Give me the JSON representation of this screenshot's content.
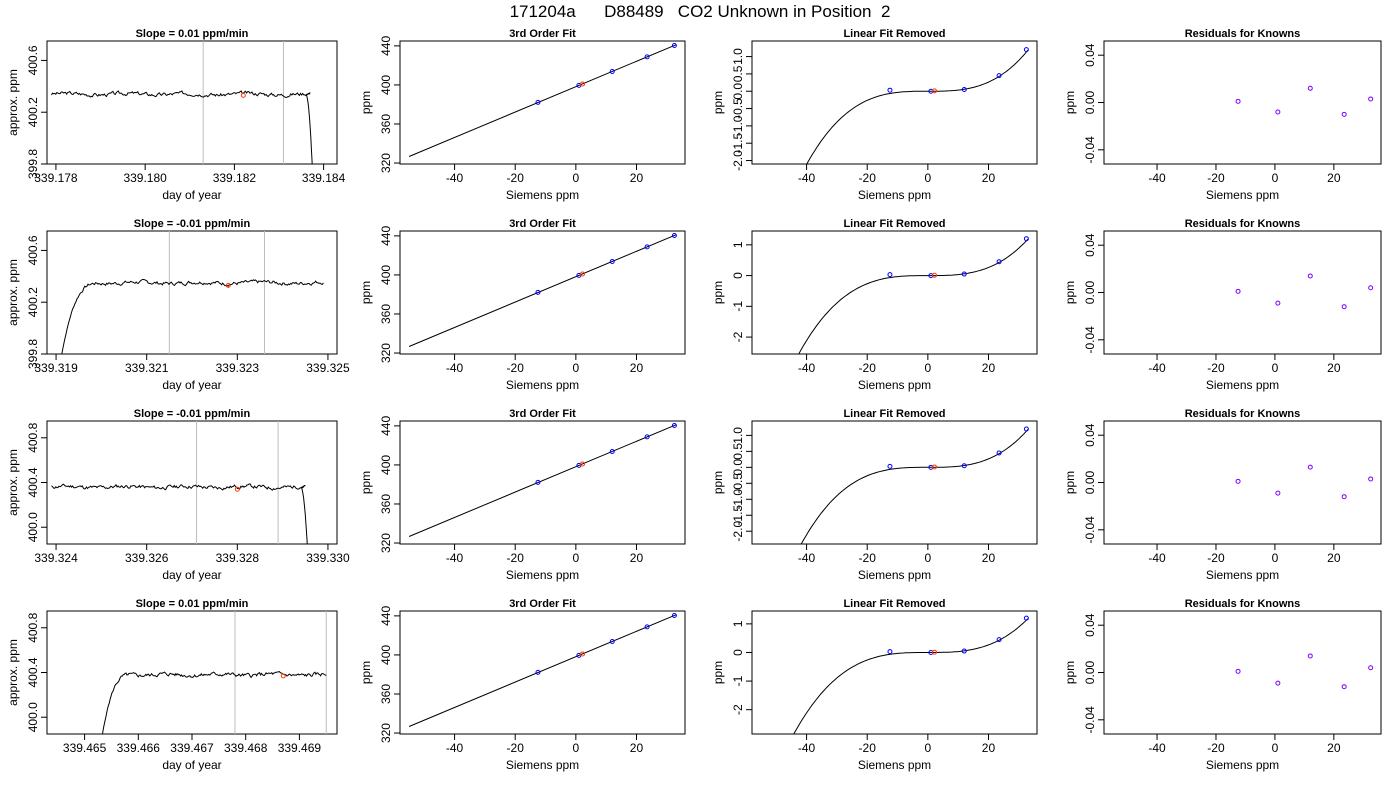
{
  "title": "171204a      D88489   CO2 Unknown in Position  2",
  "colors": {
    "line": "#000000",
    "vline": "#bdbdbd",
    "known": "#0000ff",
    "unknown": "#ff3300",
    "residual": "#8000ff"
  },
  "chart_data": [
    {
      "type": "line",
      "title": "Slope =  0.01  ppm/min",
      "xlabel": "day of year",
      "ylabel": "approx. ppm",
      "xlim": [
        339.1778,
        339.1843
      ],
      "ylim": [
        399.8,
        400.75
      ],
      "xticks": [
        339.178,
        339.18,
        339.182,
        339.184
      ],
      "xticklabels": [
        "339.178",
        "339.180",
        "339.182",
        "339.184"
      ],
      "yticks": [
        399.8,
        400.2,
        400.6
      ],
      "yticklabels": [
        "399.8",
        "400.2",
        "400.6"
      ],
      "vlines": [
        339.1813,
        339.1831
      ],
      "points": [
        {
          "x": 339.1822,
          "y": 400.33,
          "role": "unknown"
        }
      ],
      "trace": {
        "base": 400.34,
        "amp": 0.012,
        "seed": 3,
        "start": 339.1779,
        "end": 339.1837,
        "riseStart": null,
        "riseEnd": null,
        "fallStart": 339.1836,
        "fallEnd": 339.18375,
        "fallTo": 399.75
      }
    },
    {
      "type": "line",
      "title": "3rd Order Fit",
      "xlabel": "Siemens ppm",
      "ylabel": "ppm",
      "xlim": [
        -58,
        36
      ],
      "ylim": [
        319,
        445
      ],
      "xticks": [
        -40,
        -20,
        0,
        20
      ],
      "xticklabels": [
        "-40",
        "-20",
        "0",
        "20"
      ],
      "yticks": [
        320,
        360,
        400,
        440
      ],
      "yticklabels": [
        "320",
        "360",
        "400",
        "440"
      ],
      "curve": {
        "x0": -55,
        "x1": 33,
        "a": 398.2,
        "b": 1.3
      },
      "points": [
        {
          "x": -12.5,
          "y": 382.1,
          "role": "known"
        },
        {
          "x": 1.0,
          "y": 399.5,
          "role": "known"
        },
        {
          "x": 12.0,
          "y": 413.8,
          "role": "known"
        },
        {
          "x": 23.5,
          "y": 428.7,
          "role": "known"
        },
        {
          "x": 32.5,
          "y": 440.4,
          "role": "known"
        },
        {
          "x": 2.2,
          "y": 401.0,
          "role": "unknown"
        }
      ]
    },
    {
      "type": "line",
      "title": "Linear Fit Removed",
      "xlabel": "Siemens ppm",
      "ylabel": "ppm",
      "xlim": [
        -58,
        36
      ],
      "ylim": [
        -2.1,
        1.45
      ],
      "xticks": [
        -40,
        -20,
        0,
        20
      ],
      "xticklabels": [
        "-40",
        "-20",
        "0",
        "20"
      ],
      "yticks": [
        -2,
        -1.5,
        -1,
        -0.5,
        0,
        0.5,
        1
      ],
      "yticklabels": [
        "-2.0",
        "-1.5",
        "-1.0",
        "-0.5",
        "0.0",
        "0.5",
        "1.0"
      ],
      "cubic": {
        "x0": -55,
        "x1": 33,
        "k": 3.3e-05
      },
      "points": [
        {
          "x": -12.5,
          "y": 0.03,
          "role": "known"
        },
        {
          "x": 1.0,
          "y": 0.0,
          "role": "known"
        },
        {
          "x": 12.0,
          "y": 0.05,
          "role": "known"
        },
        {
          "x": 23.5,
          "y": 0.45,
          "role": "known"
        },
        {
          "x": 32.5,
          "y": 1.2,
          "role": "known"
        },
        {
          "x": 2.2,
          "y": 0.01,
          "role": "unknown"
        }
      ]
    },
    {
      "type": "scatter",
      "title": "Residuals for Knowns",
      "xlabel": "Siemens ppm",
      "ylabel": "ppm",
      "xlim": [
        -58,
        36
      ],
      "ylim": [
        -0.052,
        0.052
      ],
      "xticks": [
        -40,
        -20,
        0,
        20
      ],
      "xticklabels": [
        "-40",
        "-20",
        "0",
        "20"
      ],
      "yticks": [
        -0.04,
        0,
        0.04
      ],
      "yticklabels": [
        "-0.04",
        "0.00",
        "0.04"
      ],
      "points": [
        {
          "x": -12.5,
          "y": 0.001,
          "role": "residual"
        },
        {
          "x": 1.0,
          "y": -0.008,
          "role": "residual"
        },
        {
          "x": 12.0,
          "y": 0.012,
          "role": "residual"
        },
        {
          "x": 23.5,
          "y": -0.01,
          "role": "residual"
        },
        {
          "x": 32.5,
          "y": 0.003,
          "role": "residual"
        }
      ]
    },
    {
      "type": "line",
      "title": "Slope =  -0.01  ppm/min",
      "xlabel": "day of year",
      "ylabel": "approx. ppm",
      "xlim": [
        339.3188,
        339.3252
      ],
      "ylim": [
        399.8,
        400.75
      ],
      "xticks": [
        339.319,
        339.321,
        339.323,
        339.325
      ],
      "xticklabels": [
        "339.319",
        "339.321",
        "339.323",
        "339.325"
      ],
      "yticks": [
        399.8,
        400.2,
        400.6
      ],
      "yticklabels": [
        "399.8",
        "400.2",
        "400.6"
      ],
      "vlines": [
        339.3215,
        339.3236
      ],
      "points": [
        {
          "x": 339.3228,
          "y": 400.33,
          "role": "unknown"
        }
      ],
      "trace": {
        "base": 400.35,
        "amp": 0.012,
        "seed": 7,
        "start": 339.3191,
        "end": 339.3249,
        "riseStart": 339.3191,
        "riseEnd": 339.32,
        "riseFrom": 399.75,
        "fallStart": null,
        "fallEnd": null
      }
    },
    {
      "type": "line",
      "title": "3rd Order Fit",
      "xlabel": "Siemens ppm",
      "ylabel": "ppm",
      "xlim": [
        -58,
        36
      ],
      "ylim": [
        319,
        445
      ],
      "xticks": [
        -40,
        -20,
        0,
        20
      ],
      "xticklabels": [
        "-40",
        "-20",
        "0",
        "20"
      ],
      "yticks": [
        320,
        360,
        400,
        440
      ],
      "yticklabels": [
        "320",
        "360",
        "400",
        "440"
      ],
      "curve": {
        "x0": -55,
        "x1": 33,
        "a": 398.2,
        "b": 1.3
      },
      "points": [
        {
          "x": -12.5,
          "y": 382.1,
          "role": "known"
        },
        {
          "x": 1.0,
          "y": 399.5,
          "role": "known"
        },
        {
          "x": 12.0,
          "y": 413.8,
          "role": "known"
        },
        {
          "x": 23.5,
          "y": 428.7,
          "role": "known"
        },
        {
          "x": 32.5,
          "y": 440.4,
          "role": "known"
        },
        {
          "x": 2.2,
          "y": 401.0,
          "role": "unknown"
        }
      ]
    },
    {
      "type": "line",
      "title": "Linear Fit Removed",
      "xlabel": "Siemens ppm",
      "ylabel": "ppm",
      "xlim": [
        -58,
        36
      ],
      "ylim": [
        -2.55,
        1.45
      ],
      "xticks": [
        -40,
        -20,
        0,
        20
      ],
      "xticklabels": [
        "-40",
        "-20",
        "0",
        "20"
      ],
      "yticks": [
        -2,
        -1,
        0,
        1
      ],
      "yticklabels": [
        "-2",
        "-1",
        "0",
        "1"
      ],
      "cubic": {
        "x0": -55,
        "x1": 33,
        "k": 3.3e-05
      },
      "points": [
        {
          "x": -12.5,
          "y": 0.03,
          "role": "known"
        },
        {
          "x": 1.0,
          "y": 0.0,
          "role": "known"
        },
        {
          "x": 12.0,
          "y": 0.05,
          "role": "known"
        },
        {
          "x": 23.5,
          "y": 0.45,
          "role": "known"
        },
        {
          "x": 32.5,
          "y": 1.2,
          "role": "known"
        },
        {
          "x": 2.2,
          "y": 0.01,
          "role": "unknown"
        }
      ]
    },
    {
      "type": "scatter",
      "title": "Residuals for Knowns",
      "xlabel": "Siemens ppm",
      "ylabel": "ppm",
      "xlim": [
        -58,
        36
      ],
      "ylim": [
        -0.052,
        0.052
      ],
      "xticks": [
        -40,
        -20,
        0,
        20
      ],
      "xticklabels": [
        "-40",
        "-20",
        "0",
        "20"
      ],
      "yticks": [
        -0.04,
        0,
        0.04
      ],
      "yticklabels": [
        "-0.04",
        "0.00",
        "0.04"
      ],
      "points": [
        {
          "x": -12.5,
          "y": 0.001,
          "role": "residual"
        },
        {
          "x": 1.0,
          "y": -0.009,
          "role": "residual"
        },
        {
          "x": 12.0,
          "y": 0.014,
          "role": "residual"
        },
        {
          "x": 23.5,
          "y": -0.012,
          "role": "residual"
        },
        {
          "x": 32.5,
          "y": 0.004,
          "role": "residual"
        }
      ]
    },
    {
      "type": "line",
      "title": "Slope =  -0.01  ppm/min",
      "xlabel": "day of year",
      "ylabel": "approx. ppm",
      "xlim": [
        339.3238,
        339.3302
      ],
      "ylim": [
        399.85,
        400.95
      ],
      "xticks": [
        339.324,
        339.326,
        339.328,
        339.33
      ],
      "xticklabels": [
        "339.324",
        "339.326",
        "339.328",
        "339.330"
      ],
      "yticks": [
        400,
        400.4,
        400.8
      ],
      "yticklabels": [
        "400.0",
        "400.4",
        "400.8"
      ],
      "vlines": [
        339.3271,
        339.3289
      ],
      "points": [
        {
          "x": 339.328,
          "y": 400.34,
          "role": "unknown"
        }
      ],
      "trace": {
        "base": 400.36,
        "amp": 0.014,
        "seed": 11,
        "start": 339.3239,
        "end": 339.3295,
        "riseStart": null,
        "riseEnd": null,
        "fallStart": 339.3294,
        "fallEnd": 339.32955,
        "fallTo": 399.8
      }
    },
    {
      "type": "line",
      "title": "3rd Order Fit",
      "xlabel": "Siemens ppm",
      "ylabel": "ppm",
      "xlim": [
        -58,
        36
      ],
      "ylim": [
        319,
        445
      ],
      "xticks": [
        -40,
        -20,
        0,
        20
      ],
      "xticklabels": [
        "-40",
        "-20",
        "0",
        "20"
      ],
      "yticks": [
        320,
        360,
        400,
        440
      ],
      "yticklabels": [
        "320",
        "360",
        "400",
        "440"
      ],
      "curve": {
        "x0": -55,
        "x1": 33,
        "a": 398.2,
        "b": 1.3
      },
      "points": [
        {
          "x": -12.5,
          "y": 382.1,
          "role": "known"
        },
        {
          "x": 1.0,
          "y": 399.5,
          "role": "known"
        },
        {
          "x": 12.0,
          "y": 413.8,
          "role": "known"
        },
        {
          "x": 23.5,
          "y": 428.7,
          "role": "known"
        },
        {
          "x": 32.5,
          "y": 440.4,
          "role": "known"
        },
        {
          "x": 2.2,
          "y": 401.0,
          "role": "unknown"
        }
      ]
    },
    {
      "type": "line",
      "title": "Linear Fit Removed",
      "xlabel": "Siemens ppm",
      "ylabel": "ppm",
      "xlim": [
        -58,
        36
      ],
      "ylim": [
        -2.4,
        1.45
      ],
      "xticks": [
        -40,
        -20,
        0,
        20
      ],
      "xticklabels": [
        "-40",
        "-20",
        "0",
        "20"
      ],
      "yticks": [
        -2,
        -1.5,
        -1,
        -0.5,
        0,
        0.5,
        1
      ],
      "yticklabels": [
        "-2.0",
        "-1.5",
        "-1.0",
        "-0.5",
        "0.0",
        "0.5",
        "1.0"
      ],
      "cubic": {
        "x0": -55,
        "x1": 33,
        "k": 3.3e-05
      },
      "points": [
        {
          "x": -12.5,
          "y": 0.03,
          "role": "known"
        },
        {
          "x": 1.0,
          "y": 0.0,
          "role": "known"
        },
        {
          "x": 12.0,
          "y": 0.05,
          "role": "known"
        },
        {
          "x": 23.5,
          "y": 0.45,
          "role": "known"
        },
        {
          "x": 32.5,
          "y": 1.2,
          "role": "known"
        },
        {
          "x": 2.2,
          "y": 0.01,
          "role": "unknown"
        }
      ]
    },
    {
      "type": "scatter",
      "title": "Residuals for Knowns",
      "xlabel": "Siemens ppm",
      "ylabel": "ppm",
      "xlim": [
        -58,
        36
      ],
      "ylim": [
        -0.052,
        0.052
      ],
      "xticks": [
        -40,
        -20,
        0,
        20
      ],
      "xticklabels": [
        "-40",
        "-20",
        "0",
        "20"
      ],
      "yticks": [
        -0.04,
        0,
        0.04
      ],
      "yticklabels": [
        "-0.04",
        "0.00",
        "0.04"
      ],
      "points": [
        {
          "x": -12.5,
          "y": 0.001,
          "role": "residual"
        },
        {
          "x": 1.0,
          "y": -0.009,
          "role": "residual"
        },
        {
          "x": 12.0,
          "y": 0.013,
          "role": "residual"
        },
        {
          "x": 23.5,
          "y": -0.012,
          "role": "residual"
        },
        {
          "x": 32.5,
          "y": 0.003,
          "role": "residual"
        }
      ]
    },
    {
      "type": "line",
      "title": "Slope =  0.01  ppm/min",
      "xlabel": "day of year",
      "ylabel": "approx. ppm",
      "xlim": [
        339.4643,
        339.4697
      ],
      "ylim": [
        399.85,
        400.95
      ],
      "xticks": [
        339.465,
        339.466,
        339.467,
        339.468,
        339.469
      ],
      "xticklabels": [
        "339.465",
        "339.466",
        "339.467",
        "339.468",
        "339.469"
      ],
      "yticks": [
        400,
        400.4,
        400.8
      ],
      "yticklabels": [
        "400.0",
        "400.4",
        "400.8"
      ],
      "vlines": [
        339.4678,
        339.4695
      ],
      "points": [
        {
          "x": 339.4687,
          "y": 400.37,
          "role": "unknown"
        }
      ],
      "trace": {
        "base": 400.38,
        "amp": 0.014,
        "seed": 5,
        "start": 339.4653,
        "end": 339.4695,
        "riseStart": 339.4653,
        "riseEnd": 339.4659,
        "riseFrom": 399.75,
        "fallStart": null,
        "fallEnd": null
      }
    },
    {
      "type": "line",
      "title": "3rd Order Fit",
      "xlabel": "Siemens ppm",
      "ylabel": "ppm",
      "xlim": [
        -58,
        36
      ],
      "ylim": [
        319,
        445
      ],
      "xticks": [
        -40,
        -20,
        0,
        20
      ],
      "xticklabels": [
        "-40",
        "-20",
        "0",
        "20"
      ],
      "yticks": [
        320,
        360,
        400,
        440
      ],
      "yticklabels": [
        "320",
        "360",
        "400",
        "440"
      ],
      "curve": {
        "x0": -55,
        "x1": 33,
        "a": 398.2,
        "b": 1.3
      },
      "points": [
        {
          "x": -12.5,
          "y": 382.1,
          "role": "known"
        },
        {
          "x": 1.0,
          "y": 399.5,
          "role": "known"
        },
        {
          "x": 12.0,
          "y": 413.8,
          "role": "known"
        },
        {
          "x": 23.5,
          "y": 428.7,
          "role": "known"
        },
        {
          "x": 32.5,
          "y": 440.4,
          "role": "known"
        },
        {
          "x": 2.2,
          "y": 401.0,
          "role": "unknown"
        }
      ]
    },
    {
      "type": "line",
      "title": "Linear Fit Removed",
      "xlabel": "Siemens ppm",
      "ylabel": "ppm",
      "xlim": [
        -58,
        36
      ],
      "ylim": [
        -2.85,
        1.45
      ],
      "xticks": [
        -40,
        -20,
        0,
        20
      ],
      "xticklabels": [
        "-40",
        "-20",
        "0",
        "20"
      ],
      "yticks": [
        -2,
        -1,
        0,
        1
      ],
      "yticklabels": [
        "-2",
        "-1",
        "0",
        "1"
      ],
      "cubic": {
        "x0": -55,
        "x1": 33,
        "k": 3.3e-05
      },
      "points": [
        {
          "x": -12.5,
          "y": 0.03,
          "role": "known"
        },
        {
          "x": 1.0,
          "y": 0.0,
          "role": "known"
        },
        {
          "x": 12.0,
          "y": 0.05,
          "role": "known"
        },
        {
          "x": 23.5,
          "y": 0.45,
          "role": "known"
        },
        {
          "x": 32.5,
          "y": 1.2,
          "role": "known"
        },
        {
          "x": 2.2,
          "y": 0.01,
          "role": "unknown"
        }
      ]
    },
    {
      "type": "scatter",
      "title": "Residuals for Knowns",
      "xlabel": "Siemens ppm",
      "ylabel": "ppm",
      "xlim": [
        -58,
        36
      ],
      "ylim": [
        -0.052,
        0.052
      ],
      "xticks": [
        -40,
        -20,
        0,
        20
      ],
      "xticklabels": [
        "-40",
        "-20",
        "0",
        "20"
      ],
      "yticks": [
        -0.04,
        0,
        0.04
      ],
      "yticklabels": [
        "-0.04",
        "0.00",
        "0.04"
      ],
      "points": [
        {
          "x": -12.5,
          "y": 0.001,
          "role": "residual"
        },
        {
          "x": 1.0,
          "y": -0.009,
          "role": "residual"
        },
        {
          "x": 12.0,
          "y": 0.014,
          "role": "residual"
        },
        {
          "x": 23.5,
          "y": -0.012,
          "role": "residual"
        },
        {
          "x": 32.5,
          "y": 0.004,
          "role": "residual"
        }
      ]
    }
  ]
}
